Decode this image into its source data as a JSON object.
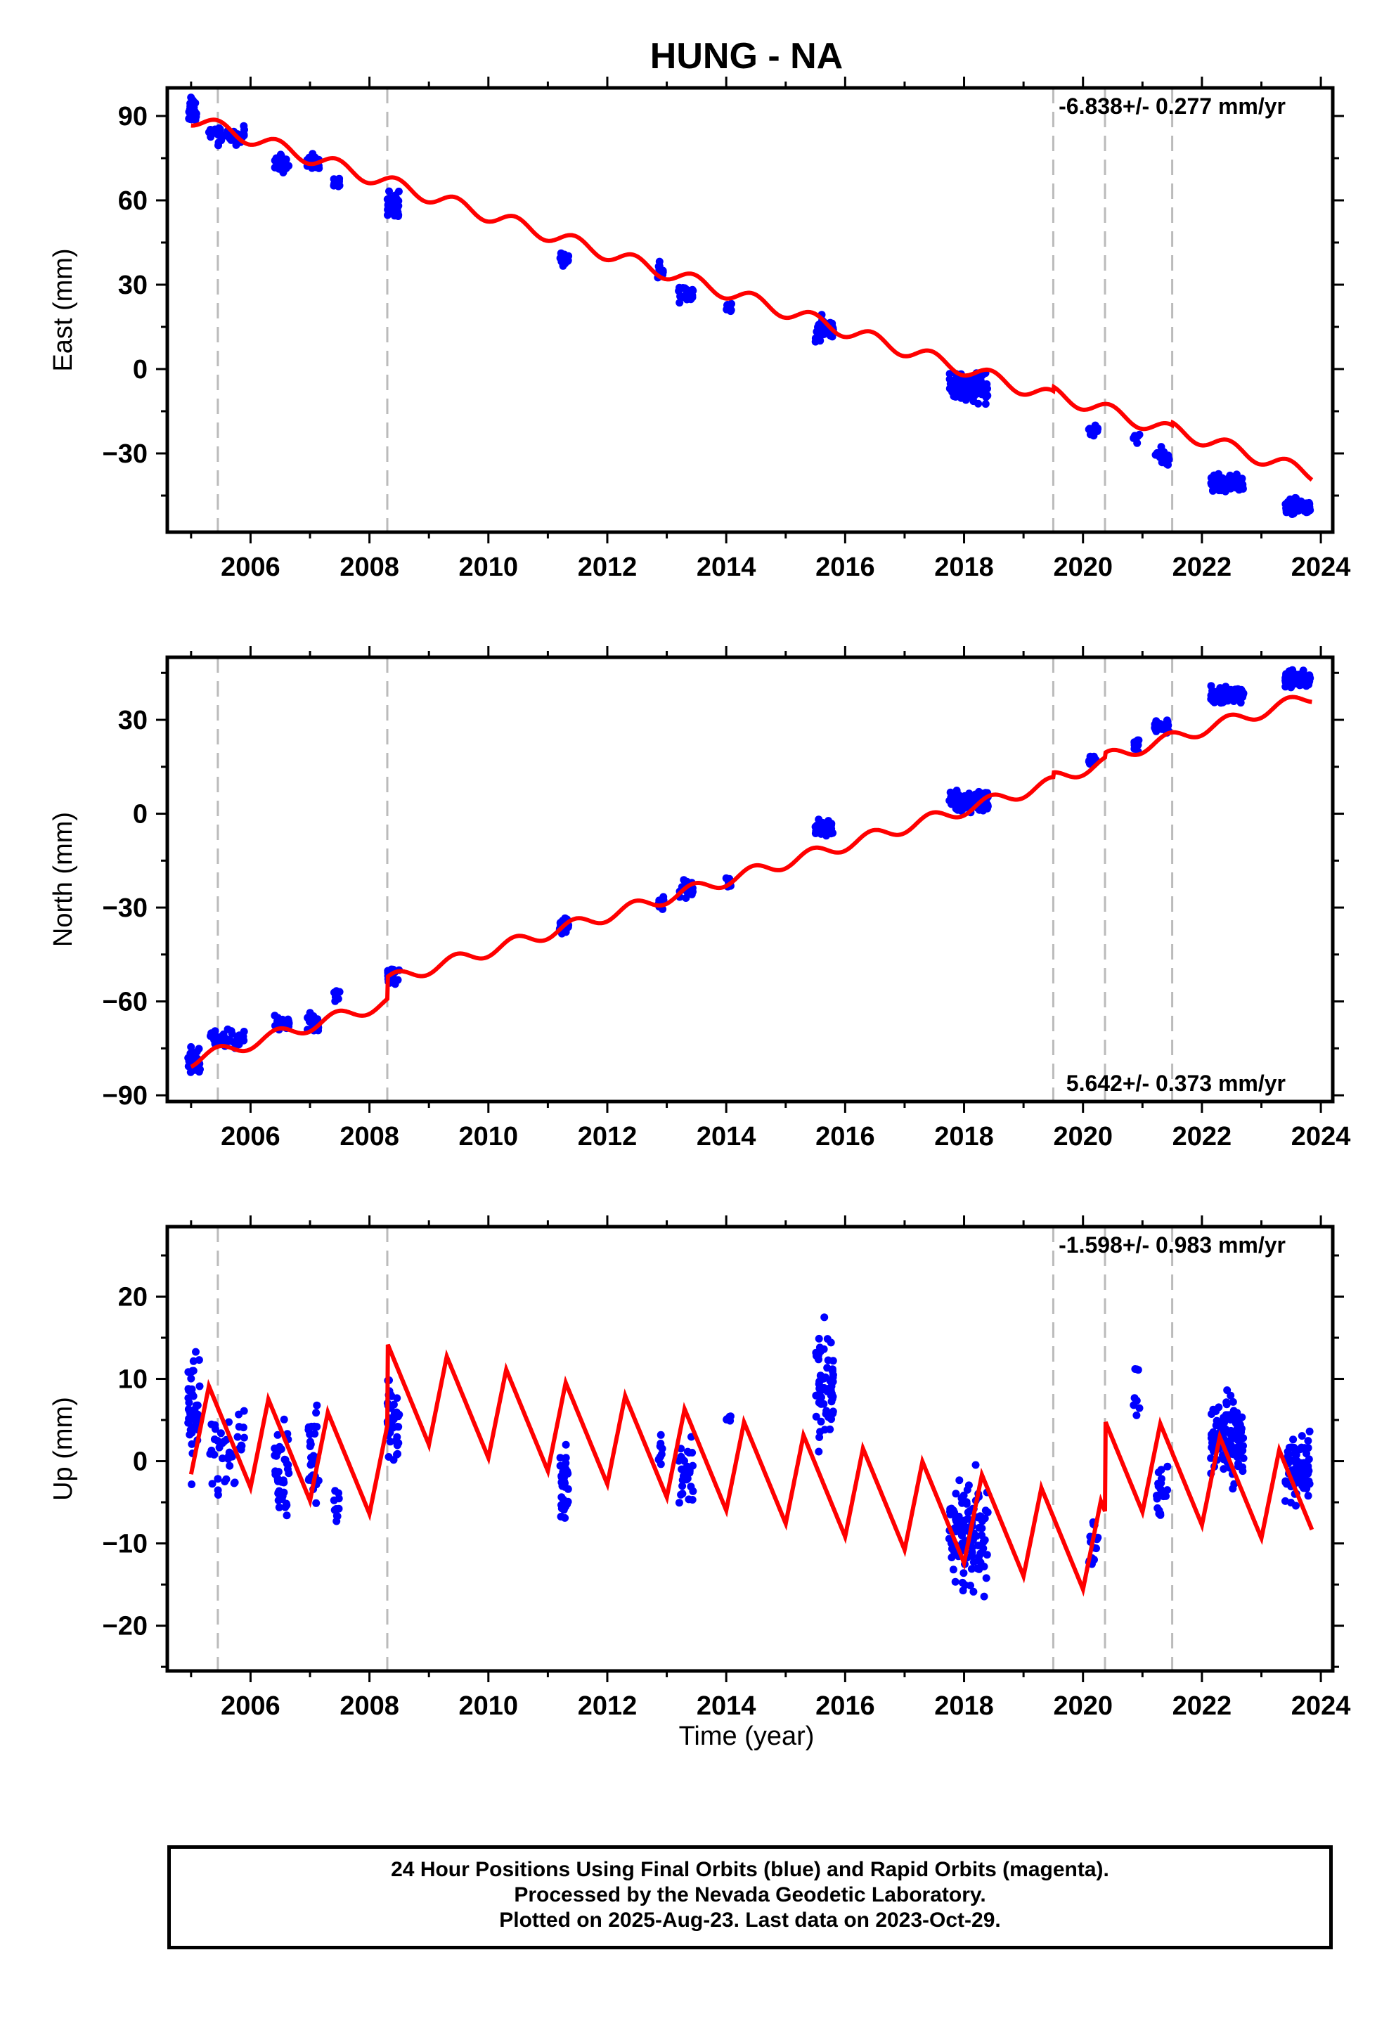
{
  "title": "HUNG - NA",
  "x_axis": {
    "label": "Time (year)",
    "range": [
      2004.6,
      2024.2
    ],
    "ticks": [
      2006,
      2008,
      2010,
      2012,
      2014,
      2016,
      2018,
      2020,
      2022,
      2024
    ],
    "tick_labels": [
      "2006",
      "2008",
      "2010",
      "2012",
      "2014",
      "2016",
      "2018",
      "2020",
      "2022",
      "2024"
    ]
  },
  "colors": {
    "data_points": "#0000ff",
    "model_line": "#ff0000",
    "event_lines": "#bbbbbb",
    "frame": "#000000"
  },
  "footer": {
    "line1": "24 Hour Positions Using Final Orbits (blue) and Rapid Orbits (magenta).",
    "line2": "Processed by the Nevada Geodetic Laboratory.",
    "line3": "Plotted on 2025-Aug-23. Last data on 2023-Oct-29."
  },
  "chart_data": [
    {
      "type": "scatter",
      "panel": "east",
      "ylabel": "East (mm)",
      "ylim": [
        -58,
        100
      ],
      "yticks": [
        -30,
        0,
        30,
        60,
        90
      ],
      "ytick_labels": [
        "−30",
        "0",
        "30",
        "60",
        "90"
      ],
      "rate_label": "-6.838+/- 0.277 mm/yr",
      "rate_position": "top-right",
      "slope_mm_per_yr": -6.838,
      "model_anchor": {
        "year": 2005.0,
        "value": 89
      },
      "seasonal_amplitude": 2.5,
      "steps": [
        {
          "year": 2019.5,
          "value": 1.5
        },
        {
          "year": 2021.5,
          "value": 1.0
        }
      ],
      "event_lines": [
        2005.45,
        2008.3,
        2019.5,
        2020.37,
        2021.5
      ],
      "clusters": [
        {
          "start": 2004.95,
          "end": 2005.1,
          "center": 92,
          "spread": 4,
          "count": 35
        },
        {
          "start": 2005.3,
          "end": 2005.9,
          "center": 83,
          "spread": 3,
          "count": 40
        },
        {
          "start": 2006.4,
          "end": 2006.65,
          "center": 73,
          "spread": 3,
          "count": 30
        },
        {
          "start": 2006.95,
          "end": 2007.15,
          "center": 73,
          "spread": 3,
          "count": 25
        },
        {
          "start": 2007.4,
          "end": 2007.5,
          "center": 66,
          "spread": 2,
          "count": 12
        },
        {
          "start": 2008.3,
          "end": 2008.5,
          "center": 59,
          "spread": 4,
          "count": 40
        },
        {
          "start": 2011.2,
          "end": 2011.35,
          "center": 39,
          "spread": 3,
          "count": 25
        },
        {
          "start": 2012.85,
          "end": 2012.95,
          "center": 35,
          "spread": 3,
          "count": 10
        },
        {
          "start": 2013.2,
          "end": 2013.45,
          "center": 27,
          "spread": 3,
          "count": 25
        },
        {
          "start": 2014.0,
          "end": 2014.1,
          "center": 22,
          "spread": 2,
          "count": 8
        },
        {
          "start": 2015.5,
          "end": 2015.8,
          "center": 14,
          "spread": 4,
          "count": 45
        },
        {
          "start": 2017.75,
          "end": 2018.4,
          "center": -6,
          "spread": 5,
          "count": 110
        },
        {
          "start": 2020.1,
          "end": 2020.25,
          "center": -22,
          "spread": 2,
          "count": 15
        },
        {
          "start": 2020.85,
          "end": 2020.95,
          "center": -25,
          "spread": 2,
          "count": 8
        },
        {
          "start": 2021.2,
          "end": 2021.45,
          "center": -31,
          "spread": 3,
          "count": 20
        },
        {
          "start": 2022.15,
          "end": 2022.7,
          "center": -41,
          "spread": 3,
          "count": 90
        },
        {
          "start": 2023.4,
          "end": 2023.82,
          "center": -49,
          "spread": 2.5,
          "count": 90
        }
      ]
    },
    {
      "type": "scatter",
      "panel": "north",
      "ylabel": "North (mm)",
      "ylim": [
        -92,
        50
      ],
      "yticks": [
        -90,
        -60,
        -30,
        0,
        30
      ],
      "ytick_labels": [
        "−90",
        "−60",
        "−30",
        "0",
        "30"
      ],
      "rate_label": "5.642+/- 0.373 mm/yr",
      "rate_position": "bottom-right",
      "slope_mm_per_yr": 5.642,
      "model_anchor": {
        "year": 2005.0,
        "value": -79
      },
      "seasonal_amplitude": 2.0,
      "steps": [
        {
          "year": 2008.3,
          "value": 7
        },
        {
          "year": 2019.5,
          "value": 1.5
        },
        {
          "year": 2020.37,
          "value": 1.5
        }
      ],
      "event_lines": [
        2005.45,
        2008.3,
        2019.5,
        2020.37,
        2021.5
      ],
      "clusters": [
        {
          "start": 2004.95,
          "end": 2005.15,
          "center": -79,
          "spread": 4,
          "count": 35
        },
        {
          "start": 2005.3,
          "end": 2005.9,
          "center": -72,
          "spread": 2.5,
          "count": 35
        },
        {
          "start": 2006.4,
          "end": 2006.65,
          "center": -67,
          "spread": 2,
          "count": 25
        },
        {
          "start": 2006.95,
          "end": 2007.15,
          "center": -67,
          "spread": 3,
          "count": 20
        },
        {
          "start": 2007.4,
          "end": 2007.5,
          "center": -58,
          "spread": 2,
          "count": 8
        },
        {
          "start": 2008.3,
          "end": 2008.5,
          "center": -52,
          "spread": 2.5,
          "count": 35
        },
        {
          "start": 2011.2,
          "end": 2011.35,
          "center": -36,
          "spread": 2.5,
          "count": 25
        },
        {
          "start": 2012.85,
          "end": 2012.95,
          "center": -28,
          "spread": 2.5,
          "count": 10
        },
        {
          "start": 2013.2,
          "end": 2013.45,
          "center": -24,
          "spread": 2.5,
          "count": 25
        },
        {
          "start": 2014.0,
          "end": 2014.1,
          "center": -22,
          "spread": 1.5,
          "count": 8
        },
        {
          "start": 2015.5,
          "end": 2015.8,
          "center": -4,
          "spread": 3,
          "count": 45
        },
        {
          "start": 2017.75,
          "end": 2018.4,
          "center": 4,
          "spread": 3.5,
          "count": 110
        },
        {
          "start": 2020.1,
          "end": 2020.25,
          "center": 17,
          "spread": 1.5,
          "count": 15
        },
        {
          "start": 2020.85,
          "end": 2020.95,
          "center": 22,
          "spread": 2,
          "count": 8
        },
        {
          "start": 2021.2,
          "end": 2021.45,
          "center": 28,
          "spread": 3,
          "count": 20
        },
        {
          "start": 2022.15,
          "end": 2022.7,
          "center": 38,
          "spread": 2.5,
          "count": 90
        },
        {
          "start": 2023.4,
          "end": 2023.82,
          "center": 43,
          "spread": 2,
          "count": 90
        }
      ]
    },
    {
      "type": "scatter",
      "panel": "up",
      "ylabel": "Up (mm)",
      "ylim": [
        -25.5,
        28.5
      ],
      "yticks": [
        -20,
        -10,
        0,
        10,
        20
      ],
      "ytick_labels": [
        "−20",
        "−10",
        "0",
        "10",
        "20"
      ],
      "rate_label": "-1.598+/- 0.983 mm/yr",
      "rate_position": "top-right",
      "slope_mm_per_yr": -1.598,
      "model_anchor": {
        "year": 2005.0,
        "value": 4
      },
      "seasonal_amplitude": 4.0,
      "sawtooth": true,
      "steps": [
        {
          "year": 2008.3,
          "value": 10
        },
        {
          "year": 2020.37,
          "value": 11
        }
      ],
      "event_lines": [
        2005.45,
        2008.3,
        2019.5,
        2020.37,
        2021.5
      ],
      "clusters": [
        {
          "start": 2004.95,
          "end": 2005.15,
          "center": 6,
          "spread": 7,
          "count": 45
        },
        {
          "start": 2005.3,
          "end": 2005.9,
          "center": 2,
          "spread": 5,
          "count": 40
        },
        {
          "start": 2006.4,
          "end": 2006.65,
          "center": -1,
          "spread": 5,
          "count": 40
        },
        {
          "start": 2006.95,
          "end": 2007.15,
          "center": 2,
          "spread": 6,
          "count": 30
        },
        {
          "start": 2007.4,
          "end": 2007.5,
          "center": -6,
          "spread": 3,
          "count": 10
        },
        {
          "start": 2008.3,
          "end": 2008.5,
          "center": 5,
          "spread": 5,
          "count": 40
        },
        {
          "start": 2011.2,
          "end": 2011.35,
          "center": -3,
          "spread": 5,
          "count": 35
        },
        {
          "start": 2012.85,
          "end": 2012.95,
          "center": 1,
          "spread": 3,
          "count": 10
        },
        {
          "start": 2013.2,
          "end": 2013.45,
          "center": -2,
          "spread": 4,
          "count": 30
        },
        {
          "start": 2014.0,
          "end": 2014.1,
          "center": 5,
          "spread": 1,
          "count": 5
        },
        {
          "start": 2015.5,
          "end": 2015.8,
          "center": 9,
          "spread": 6,
          "count": 65
        },
        {
          "start": 2017.75,
          "end": 2018.4,
          "center": -9,
          "spread": 6,
          "count": 120
        },
        {
          "start": 2020.1,
          "end": 2020.25,
          "center": -10,
          "spread": 3,
          "count": 15
        },
        {
          "start": 2020.85,
          "end": 2020.95,
          "center": 8,
          "spread": 4,
          "count": 8
        },
        {
          "start": 2021.2,
          "end": 2021.45,
          "center": -4,
          "spread": 4,
          "count": 20
        },
        {
          "start": 2022.15,
          "end": 2022.7,
          "center": 3,
          "spread": 5,
          "count": 110
        },
        {
          "start": 2023.4,
          "end": 2023.82,
          "center": -1,
          "spread": 4,
          "count": 90
        }
      ]
    }
  ]
}
